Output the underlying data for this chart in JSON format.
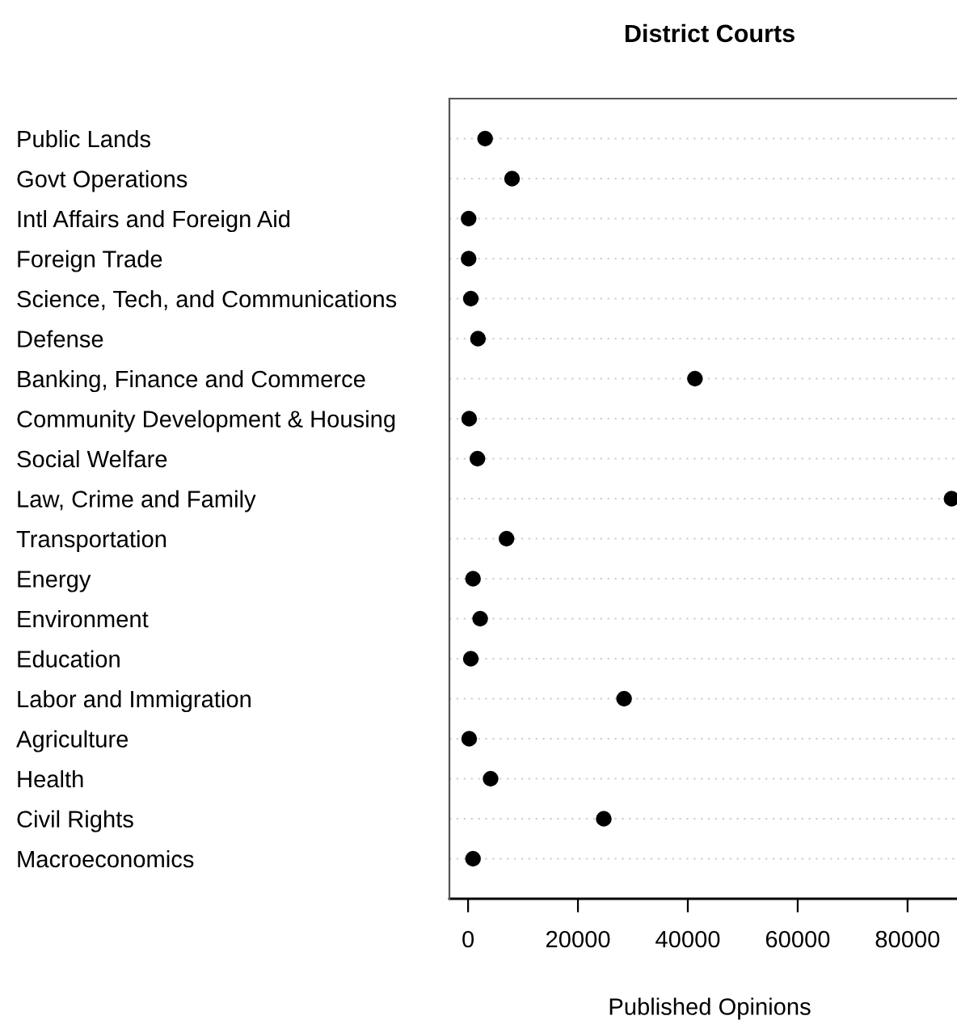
{
  "chart_data": {
    "type": "scatter",
    "title": "District Courts",
    "xlabel": "Published Opinions",
    "categories": [
      "Public Lands",
      "Govt Operations",
      "Intl Affairs and Foreign Aid",
      "Foreign Trade",
      "Science, Tech, and Communications",
      "Defense",
      "Banking, Finance and Commerce",
      "Community Development & Housing",
      "Social Welfare",
      "Law, Crime and Family",
      "Transportation",
      "Energy",
      "Environment",
      "Education",
      "Labor and Immigration",
      "Agriculture",
      "Health",
      "Civil Rights",
      "Macroeconomics"
    ],
    "orientation": "horizontal",
    "values": [
      3100,
      8000,
      100,
      100,
      500,
      1800,
      41300,
      200,
      1700,
      88000,
      7000,
      900,
      2200,
      500,
      28400,
      200,
      4100,
      24700,
      900
    ],
    "color": "#000000",
    "marker": "circle",
    "xlim": [
      -3400,
      89000
    ],
    "xticks": [
      0,
      20000,
      40000,
      60000,
      80000
    ],
    "grid": "y",
    "legend": false
  }
}
